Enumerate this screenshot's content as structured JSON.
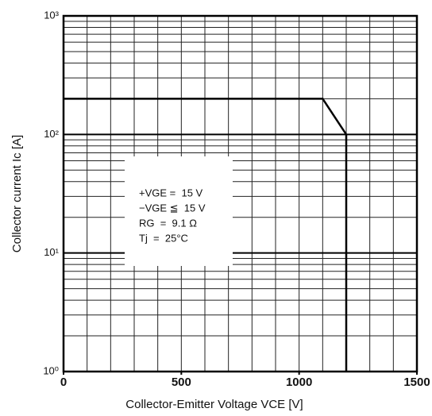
{
  "chart_data": {
    "type": "line",
    "xlabel": "Collector-Emitter Voltage VCE [V]",
    "ylabel": "Collector current Ic [A]",
    "xlim": [
      0,
      1500
    ],
    "xticks": [
      0,
      500,
      1000,
      1500
    ],
    "ylim": [
      1,
      1000
    ],
    "yticks": [
      {
        "value": 1,
        "label": "10⁰"
      },
      {
        "value": 10,
        "label": "10¹"
      },
      {
        "value": 100,
        "label": "10²"
      },
      {
        "value": 1000,
        "label": "10³"
      }
    ],
    "log_y": true,
    "grid": true,
    "xgrid": [
      0,
      100,
      200,
      300,
      400,
      500,
      600,
      700,
      800,
      900,
      1000,
      1100,
      1200,
      1300,
      1400,
      1500
    ],
    "ygrid": [
      1,
      2,
      3,
      4,
      5,
      6,
      7,
      8,
      9,
      10,
      20,
      30,
      40,
      50,
      60,
      70,
      80,
      90,
      100,
      200,
      300,
      400,
      500,
      600,
      700,
      800,
      900,
      1000
    ],
    "annotations": [
      "+VGE =  15 V",
      "−VGE ≦  15 V",
      "RG  =  9.1 Ω",
      "Tj  =  25°C"
    ],
    "series": [
      {
        "color": "#000000",
        "x": [
          0,
          1100,
          1200,
          1200
        ],
        "values": [
          200,
          200,
          100,
          1
        ]
      }
    ]
  }
}
